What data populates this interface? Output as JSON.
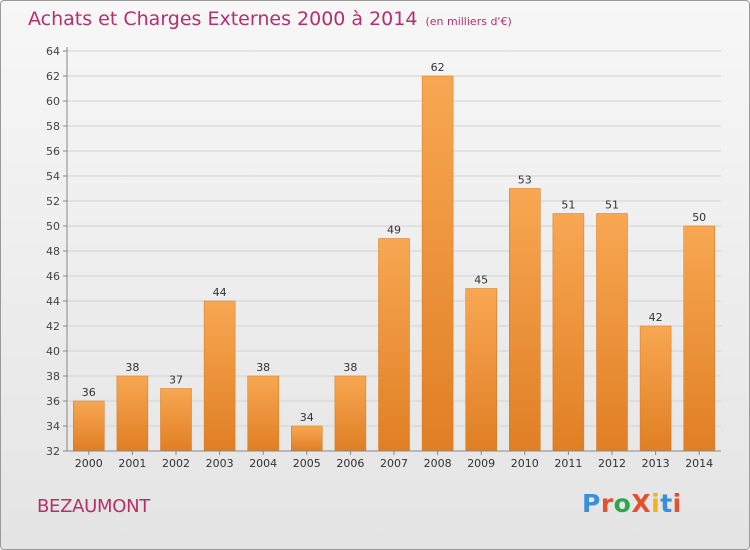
{
  "header": {
    "title": "Achats et Charges Externes 2000 à 2014",
    "subtitle": "(en milliers d'€)"
  },
  "commune": "BEZAUMONT",
  "logo": {
    "text": "ProXiti",
    "letter_colors": [
      "#3a8fd9",
      "#e6502e",
      "#2aa84a",
      "#e6502e",
      "#f2b21b",
      "#3a8fd9",
      "#e6502e"
    ]
  },
  "chart_data": {
    "type": "bar",
    "categories": [
      "2000",
      "2001",
      "2002",
      "2003",
      "2004",
      "2005",
      "2006",
      "2007",
      "2008",
      "2009",
      "2010",
      "2011",
      "2012",
      "2013",
      "2014"
    ],
    "values": [
      36,
      38,
      37,
      44,
      38,
      34,
      38,
      49,
      62,
      45,
      53,
      51,
      51,
      42,
      50
    ],
    "title": "Achats et Charges Externes 2000 à 2014",
    "subtitle": "(en milliers d'€)",
    "ylim": [
      32,
      64
    ],
    "yticks": [
      32,
      34,
      36,
      38,
      40,
      42,
      44,
      46,
      48,
      50,
      52,
      54,
      56,
      58,
      60,
      62,
      64
    ],
    "grid": true,
    "data_labels": true,
    "bar_color_light": "#f8a752",
    "bar_color_dark": "#e07f24"
  }
}
